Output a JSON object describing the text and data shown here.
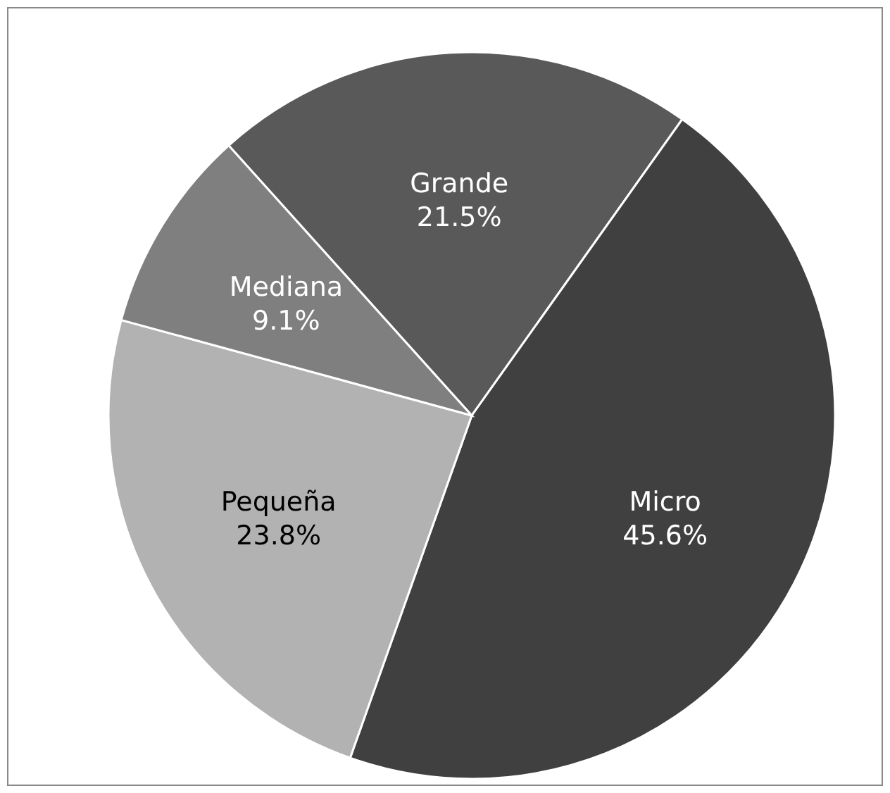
{
  "chart_data": {
    "type": "pie",
    "categories": [
      "Grande",
      "Micro",
      "Pequeña",
      "Mediana"
    ],
    "values": [
      21.5,
      45.6,
      23.8,
      9.1
    ],
    "colors": [
      "#595959",
      "#404040",
      "#b2b2b2",
      "#7f7f7f"
    ],
    "value_labels": [
      "21.5%",
      "45.6%",
      "23.8%",
      "9.1%"
    ]
  }
}
